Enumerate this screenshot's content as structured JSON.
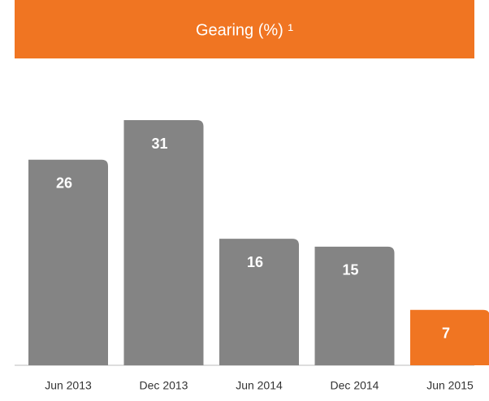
{
  "chart_data": {
    "type": "bar",
    "title": "Gearing (%) ¹",
    "categories": [
      "Jun 2013",
      "Dec 2013",
      "Jun 2014",
      "Dec 2014",
      "Jun 2015"
    ],
    "values": [
      26,
      31,
      16,
      15,
      7
    ],
    "colors": [
      "#848484",
      "#848484",
      "#848484",
      "#848484",
      "#f07522"
    ],
    "title_color": "#f07522",
    "ylim": [
      0,
      31
    ]
  }
}
